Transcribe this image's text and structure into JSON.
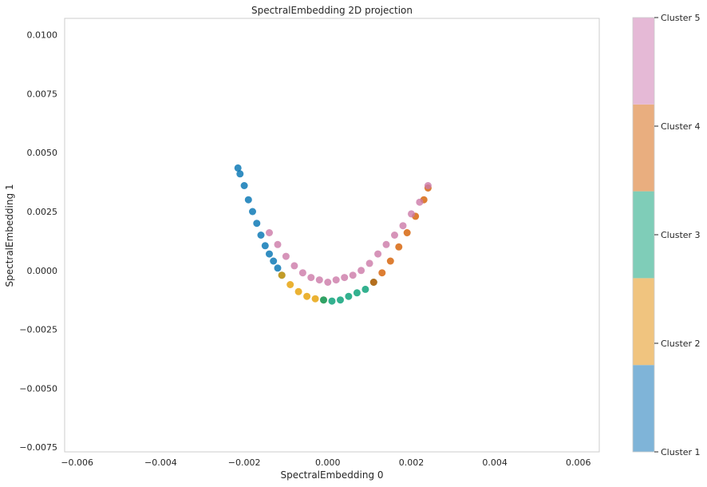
{
  "chart_data": {
    "type": "scatter",
    "title": "SpectralEmbedding 2D projection",
    "xlabel": "SpectralEmbedding 0",
    "ylabel": "SpectralEmbedding 1",
    "xlim": [
      -0.0063,
      0.0065
    ],
    "ylim": [
      -0.0077,
      0.0107
    ],
    "xticks": [
      -0.006,
      -0.004,
      -0.002,
      0.0,
      0.002,
      0.004,
      0.006
    ],
    "xtick_labels": [
      "−0.006",
      "−0.004",
      "−0.002",
      "0.000",
      "0.002",
      "0.004",
      "0.006"
    ],
    "yticks": [
      -0.0075,
      -0.005,
      -0.0025,
      0.0,
      0.0025,
      0.005,
      0.0075,
      0.01
    ],
    "ytick_labels": [
      "−0.0075",
      "−0.0050",
      "−0.0025",
      "0.0000",
      "0.0025",
      "0.0050",
      "0.0075",
      "0.0100"
    ],
    "grid": false,
    "legend": "colorbar-right",
    "series": [
      {
        "name": "Cluster 1",
        "color": "#0072b2",
        "x": [
          -0.00215,
          -0.0021,
          -0.002,
          -0.0019,
          -0.0018,
          -0.0017,
          -0.0016,
          -0.0015,
          -0.0014,
          -0.0013,
          -0.0012,
          -0.0011
        ],
        "y": [
          0.00435,
          0.0041,
          0.0036,
          0.003,
          0.0025,
          0.002,
          0.0015,
          0.00105,
          0.0007,
          0.0004,
          0.0001,
          -0.0002
        ]
      },
      {
        "name": "Cluster 2",
        "color": "#e69f00",
        "x": [
          -0.0011,
          -0.0009,
          -0.0007,
          -0.0005,
          -0.0003,
          -0.0001
        ],
        "y": [
          -0.0002,
          -0.0006,
          -0.0009,
          -0.0011,
          -0.0012,
          -0.00125
        ]
      },
      {
        "name": "Cluster 3",
        "color": "#009e73",
        "x": [
          -0.0001,
          0.0001,
          0.0003,
          0.0005,
          0.0007,
          0.0009,
          0.0011
        ],
        "y": [
          -0.00125,
          -0.0013,
          -0.00125,
          -0.0011,
          -0.00095,
          -0.0008,
          -0.0005
        ]
      },
      {
        "name": "Cluster 4",
        "color": "#d55e00",
        "x": [
          0.0011,
          0.0013,
          0.0015,
          0.0017,
          0.0019,
          0.0021,
          0.0023,
          0.0024
        ],
        "y": [
          -0.0005,
          -0.0001,
          0.0004,
          0.001,
          0.0016,
          0.0023,
          0.003,
          0.0035
        ]
      },
      {
        "name": "Cluster 5",
        "color": "#cc79a7",
        "x": [
          -0.0014,
          -0.0012,
          -0.001,
          -0.0008,
          -0.0006,
          -0.0004,
          -0.0002,
          0.0,
          0.0002,
          0.0004,
          0.0006,
          0.0008,
          0.001,
          0.0012,
          0.0014,
          0.0016,
          0.0018,
          0.002,
          0.0022,
          0.0024
        ],
        "y": [
          0.0016,
          0.0011,
          0.0006,
          0.0002,
          -0.0001,
          -0.0003,
          -0.0004,
          -0.0005,
          -0.0004,
          -0.0003,
          -0.0002,
          0.0,
          0.0003,
          0.0007,
          0.0011,
          0.0015,
          0.0019,
          0.0024,
          0.0029,
          0.0036
        ]
      }
    ],
    "colorbar": {
      "labels": [
        "Cluster 1",
        "Cluster 2",
        "Cluster 3",
        "Cluster 4",
        "Cluster 5"
      ],
      "colors": [
        "#7fb4d8",
        "#f0c47f",
        "#7fcdb8",
        "#e9ae7f",
        "#e5b9d6"
      ]
    }
  }
}
